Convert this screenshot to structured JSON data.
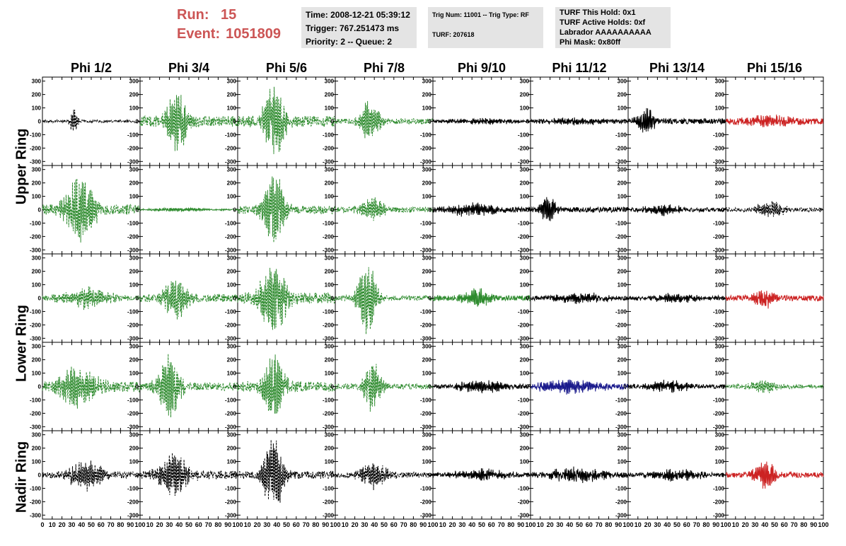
{
  "header": {
    "run_label": "Run:",
    "run_value": "15",
    "event_label": "Event:",
    "event_value": "1051809"
  },
  "info_time": {
    "line1": "Time: 2008-12-21 05:39:12",
    "line2": "Trigger: 767.251473 ms",
    "line3": "Priority: 2 -- Queue: 2"
  },
  "info_trig": {
    "line1": "Trig Num: 11001 -- Trig Type: RF",
    "line2": "TURF: 207618"
  },
  "info_turf": {
    "line1": "TURF This Hold: 0x1",
    "line2": "TURF Active Holds: 0xf",
    "line3": "Labrador AAAAAAAAAA",
    "line4": "Phi Mask: 0x80ff"
  },
  "colors": {
    "black": "#000000",
    "green": "#2e8b2e",
    "red": "#cc2222",
    "blue": "#1a1a8c",
    "info_bg": "#e4e4e4",
    "run_text": "#cc5555"
  },
  "chart_data": {
    "type": "line",
    "columns": [
      "Phi 1/2",
      "Phi 3/4",
      "Phi 5/6",
      "Phi 7/8",
      "Phi 9/10",
      "Phi 11/12",
      "Phi 13/14",
      "Phi 15/16"
    ],
    "rows": [
      "Upper Ring",
      "Lower Ring",
      "Nadir Ring"
    ],
    "x_range": [
      0,
      100
    ],
    "y_range": [
      -330,
      330
    ],
    "x_ticks": [
      0,
      10,
      20,
      30,
      40,
      50,
      60,
      70,
      80,
      90,
      100
    ],
    "x_tick_labels": [
      "0",
      "10",
      "20",
      "30",
      "40",
      "50",
      "60",
      "70",
      "80",
      "90",
      "100"
    ],
    "y_ticks": [
      -300,
      -200,
      -100,
      0,
      100,
      200,
      300
    ],
    "y_tick_labels": [
      "-300",
      "-200",
      "-100",
      "0",
      "100",
      "200",
      "300"
    ],
    "panels": [
      [
        {
          "color": "black",
          "dashed": true,
          "peak_x": 32,
          "amp": 100,
          "width": 4,
          "noise": 10
        },
        {
          "color": "green",
          "dashed": true,
          "peak_x": 38,
          "amp": 240,
          "width": 12,
          "noise": 40
        },
        {
          "color": "green",
          "dashed": true,
          "peak_x": 37,
          "amp": 270,
          "width": 12,
          "noise": 40
        },
        {
          "color": "green",
          "dashed": true,
          "peak_x": 35,
          "amp": 160,
          "width": 10,
          "noise": 20
        },
        {
          "color": "black",
          "dashed": false,
          "peak_x": 50,
          "amp": 20,
          "width": 40,
          "noise": 10
        },
        {
          "color": "black",
          "dashed": false,
          "peak_x": 50,
          "amp": 25,
          "width": 40,
          "noise": 12
        },
        {
          "color": "black",
          "dashed": false,
          "peak_x": 18,
          "amp": 100,
          "width": 10,
          "noise": 20
        },
        {
          "color": "red",
          "dashed": false,
          "peak_x": 45,
          "amp": 40,
          "width": 30,
          "noise": 20
        }
      ],
      [
        {
          "color": "green",
          "dashed": true,
          "peak_x": 38,
          "amp": 280,
          "width": 15,
          "noise": 40
        },
        {
          "color": "green",
          "dashed": false,
          "peak_x": 40,
          "amp": 15,
          "width": 30,
          "noise": 5
        },
        {
          "color": "green",
          "dashed": true,
          "peak_x": 37,
          "amp": 280,
          "width": 12,
          "noise": 30
        },
        {
          "color": "green",
          "dashed": true,
          "peak_x": 38,
          "amp": 100,
          "width": 12,
          "noise": 20
        },
        {
          "color": "black",
          "dashed": false,
          "peak_x": 40,
          "amp": 50,
          "width": 25,
          "noise": 20
        },
        {
          "color": "black",
          "dashed": false,
          "peak_x": 18,
          "amp": 110,
          "width": 8,
          "noise": 20
        },
        {
          "color": "black",
          "dashed": false,
          "peak_x": 35,
          "amp": 40,
          "width": 20,
          "noise": 15
        },
        {
          "color": "black",
          "dashed": true,
          "peak_x": 45,
          "amp": 60,
          "width": 15,
          "noise": 15
        }
      ],
      [
        {
          "color": "green",
          "dashed": true,
          "peak_x": 45,
          "amp": 80,
          "width": 25,
          "noise": 20
        },
        {
          "color": "green",
          "dashed": true,
          "peak_x": 37,
          "amp": 180,
          "width": 12,
          "noise": 30
        },
        {
          "color": "green",
          "dashed": true,
          "peak_x": 37,
          "amp": 300,
          "width": 14,
          "noise": 40
        },
        {
          "color": "green",
          "dashed": true,
          "peak_x": 32,
          "amp": 280,
          "width": 10,
          "noise": 20
        },
        {
          "color": "green",
          "dashed": false,
          "peak_x": 45,
          "amp": 70,
          "width": 15,
          "noise": 20
        },
        {
          "color": "black",
          "dashed": false,
          "peak_x": 50,
          "amp": 35,
          "width": 30,
          "noise": 15
        },
        {
          "color": "black",
          "dashed": false,
          "peak_x": 50,
          "amp": 30,
          "width": 30,
          "noise": 15
        },
        {
          "color": "red",
          "dashed": false,
          "peak_x": 40,
          "amp": 70,
          "width": 12,
          "noise": 20
        }
      ],
      [
        {
          "color": "green",
          "dashed": true,
          "peak_x": 35,
          "amp": 150,
          "width": 20,
          "noise": 40
        },
        {
          "color": "green",
          "dashed": true,
          "peak_x": 30,
          "amp": 250,
          "width": 12,
          "noise": 30
        },
        {
          "color": "green",
          "dashed": true,
          "peak_x": 37,
          "amp": 300,
          "width": 10,
          "noise": 40
        },
        {
          "color": "green",
          "dashed": true,
          "peak_x": 38,
          "amp": 200,
          "width": 10,
          "noise": 20
        },
        {
          "color": "black",
          "dashed": false,
          "peak_x": 50,
          "amp": 50,
          "width": 25,
          "noise": 15
        },
        {
          "color": "blue",
          "dashed": false,
          "peak_x": 40,
          "amp": 50,
          "width": 35,
          "noise": 20
        },
        {
          "color": "black",
          "dashed": false,
          "peak_x": 40,
          "amp": 40,
          "width": 25,
          "noise": 15
        },
        {
          "color": "green",
          "dashed": true,
          "peak_x": 40,
          "amp": 50,
          "width": 15,
          "noise": 15
        }
      ]
    ]
  }
}
